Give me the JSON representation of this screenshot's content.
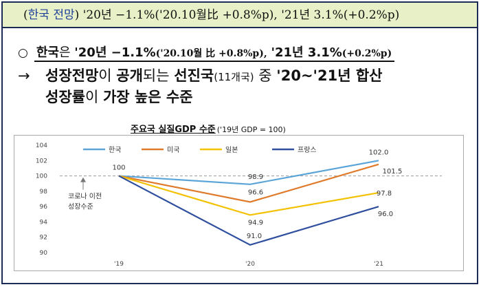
{
  "header": {
    "prefix": "(",
    "topic": "한국 전망",
    "suffix": ") '20년 −1.1%('20.10월比 +0.8%p), '21년 3.1%(+0.2%p)"
  },
  "bullet": {
    "marker": "○",
    "subject": "한국",
    "particle": "은",
    "y20": "'20년 −1.1%",
    "y20_detail": "('20.10월 比 +0.8%p),",
    "y21": "'21년 3.1%",
    "y21_detail": "(+0.2%p)"
  },
  "statement": {
    "arrow": "→",
    "p1": "성장전망",
    "p2": "이 ",
    "p3": "공개",
    "p4": "되는 ",
    "p5": "선진국",
    "p6": "(11개국)",
    "p7": " 중 ",
    "p8": "'20~'21년 합산",
    "p9": "성장률",
    "p10": "이 ",
    "p11": "가장 높은 수준"
  },
  "chart_title": {
    "main": "주요국 실질GDP 수준",
    "sub": "('19년 GDP = 100)"
  },
  "colors": {
    "korea": "#5aa4d8",
    "us": "#e07a2b",
    "japan": "#f2c200",
    "france": "#2f4f9e",
    "baseline": "#9a9a9a"
  },
  "chart_data": {
    "type": "line",
    "title": "주요국 실질GDP 수준",
    "subtitle": "('19년 GDP = 100)",
    "categories": [
      "'19",
      "'20",
      "'21"
    ],
    "ylim": [
      90,
      104
    ],
    "yticks": [
      90,
      92,
      94,
      96,
      98,
      100,
      102,
      104
    ],
    "grid": false,
    "legend": "top",
    "series": [
      {
        "name": "한국",
        "values": [
          100,
          98.9,
          102.0
        ],
        "color": "#5aa4d8",
        "labels": [
          "100",
          "98.9",
          "102.0"
        ]
      },
      {
        "name": "미국",
        "values": [
          100,
          96.6,
          101.5
        ],
        "color": "#e07a2b",
        "labels": [
          "",
          "96.6",
          "101.5"
        ]
      },
      {
        "name": "일본",
        "values": [
          100,
          94.9,
          97.8
        ],
        "color": "#f2c200",
        "labels": [
          "",
          "94.9",
          "97.8"
        ]
      },
      {
        "name": "프랑스",
        "values": [
          100,
          91.0,
          96.0
        ],
        "color": "#2f4f9e",
        "labels": [
          "",
          "91.0",
          "96.0"
        ]
      }
    ],
    "baseline": {
      "value": 100,
      "label_line1": "코로나 이전",
      "label_line2": "성장수준"
    }
  }
}
